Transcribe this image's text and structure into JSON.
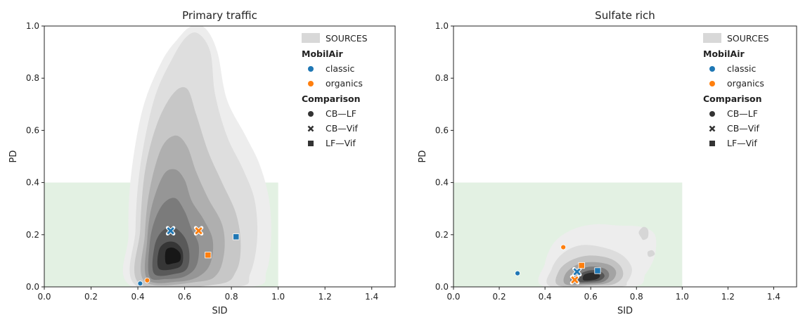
{
  "chart_data": [
    {
      "type": "scatter",
      "title": "Primary traffic",
      "xlabel": "SID",
      "ylabel": "PD",
      "xlim": [
        0.0,
        1.5
      ],
      "ylim": [
        0.0,
        1.0
      ],
      "xticks": [
        "0.0",
        "0.2",
        "0.4",
        "0.6",
        "0.8",
        "1.0",
        "1.2",
        "1.4"
      ],
      "yticks": [
        "0.0",
        "0.2",
        "0.4",
        "0.6",
        "0.8",
        "1.0"
      ],
      "grid": false,
      "legend_position": "top-right",
      "region": {
        "x": [
          0.0,
          1.0
        ],
        "y": [
          0.0,
          0.4
        ],
        "color": "#e3f1e3"
      },
      "density": {
        "label": "SOURCES",
        "levels": [
          {
            "fill": "#ededed",
            "pts": [
              [
                0.38,
                0.0
              ],
              [
                0.36,
                0.2
              ],
              [
                0.37,
                0.42
              ],
              [
                0.42,
                0.68
              ],
              [
                0.5,
                0.86
              ],
              [
                0.57,
                0.95
              ],
              [
                0.63,
                1.0
              ],
              [
                0.69,
                0.99
              ],
              [
                0.74,
                0.9
              ],
              [
                0.78,
                0.72
              ],
              [
                0.86,
                0.58
              ],
              [
                0.92,
                0.47
              ],
              [
                0.96,
                0.34
              ],
              [
                0.97,
                0.2
              ],
              [
                0.95,
                0.06
              ],
              [
                0.88,
                0.0
              ]
            ]
          },
          {
            "fill": "#dedede",
            "pts": [
              [
                0.4,
                0.0
              ],
              [
                0.39,
                0.22
              ],
              [
                0.41,
                0.46
              ],
              [
                0.47,
                0.72
              ],
              [
                0.55,
                0.88
              ],
              [
                0.61,
                0.96
              ],
              [
                0.66,
                0.97
              ],
              [
                0.71,
                0.9
              ],
              [
                0.73,
                0.74
              ],
              [
                0.78,
                0.58
              ],
              [
                0.85,
                0.45
              ],
              [
                0.9,
                0.33
              ],
              [
                0.91,
                0.18
              ],
              [
                0.88,
                0.05
              ],
              [
                0.82,
                0.0
              ]
            ]
          },
          {
            "fill": "#c7c7c7",
            "pts": [
              [
                0.41,
                0.01
              ],
              [
                0.41,
                0.22
              ],
              [
                0.43,
                0.44
              ],
              [
                0.48,
                0.62
              ],
              [
                0.55,
                0.74
              ],
              [
                0.61,
                0.76
              ],
              [
                0.65,
                0.66
              ],
              [
                0.7,
                0.52
              ],
              [
                0.76,
                0.4
              ],
              [
                0.82,
                0.28
              ],
              [
                0.84,
                0.16
              ],
              [
                0.82,
                0.06
              ],
              [
                0.74,
                0.01
              ]
            ]
          },
          {
            "fill": "#afafaf",
            "pts": [
              [
                0.43,
                0.02
              ],
              [
                0.43,
                0.2
              ],
              [
                0.45,
                0.37
              ],
              [
                0.5,
                0.53
              ],
              [
                0.56,
                0.58
              ],
              [
                0.61,
                0.54
              ],
              [
                0.65,
                0.44
              ],
              [
                0.7,
                0.34
              ],
              [
                0.76,
                0.24
              ],
              [
                0.77,
                0.14
              ],
              [
                0.74,
                0.05
              ],
              [
                0.66,
                0.02
              ]
            ]
          },
          {
            "fill": "#969696",
            "pts": [
              [
                0.44,
                0.03
              ],
              [
                0.44,
                0.18
              ],
              [
                0.46,
                0.31
              ],
              [
                0.51,
                0.43
              ],
              [
                0.56,
                0.45
              ],
              [
                0.6,
                0.41
              ],
              [
                0.63,
                0.33
              ],
              [
                0.68,
                0.26
              ],
              [
                0.72,
                0.18
              ],
              [
                0.71,
                0.09
              ],
              [
                0.66,
                0.04
              ],
              [
                0.57,
                0.02
              ]
            ]
          },
          {
            "fill": "#7b7b7b",
            "pts": [
              [
                0.45,
                0.04
              ],
              [
                0.45,
                0.16
              ],
              [
                0.47,
                0.25
              ],
              [
                0.51,
                0.32
              ],
              [
                0.56,
                0.34
              ],
              [
                0.6,
                0.29
              ],
              [
                0.63,
                0.22
              ],
              [
                0.66,
                0.16
              ],
              [
                0.65,
                0.08
              ],
              [
                0.6,
                0.04
              ],
              [
                0.52,
                0.03
              ]
            ]
          },
          {
            "fill": "#595959",
            "pts": [
              [
                0.47,
                0.05
              ],
              [
                0.47,
                0.15
              ],
              [
                0.5,
                0.21
              ],
              [
                0.55,
                0.23
              ],
              [
                0.6,
                0.19
              ],
              [
                0.62,
                0.13
              ],
              [
                0.61,
                0.07
              ],
              [
                0.56,
                0.05
              ]
            ]
          },
          {
            "fill": "#363636",
            "pts": [
              [
                0.49,
                0.07
              ],
              [
                0.49,
                0.14
              ],
              [
                0.52,
                0.17
              ],
              [
                0.56,
                0.17
              ],
              [
                0.59,
                0.14
              ],
              [
                0.59,
                0.09
              ],
              [
                0.56,
                0.07
              ]
            ]
          },
          {
            "fill": "#171717",
            "pts": [
              [
                0.52,
                0.09
              ],
              [
                0.52,
                0.14
              ],
              [
                0.55,
                0.15
              ],
              [
                0.58,
                0.13
              ],
              [
                0.58,
                0.1
              ],
              [
                0.55,
                0.09
              ]
            ]
          }
        ]
      },
      "legend": {
        "density_label": "SOURCES",
        "mobilair_title": "MobilAir",
        "mobilair_items": [
          {
            "label": "classic",
            "color": "#1f77b4"
          },
          {
            "label": "organics",
            "color": "#ff7f0e"
          }
        ],
        "comparison_title": "Comparison",
        "comparison_items": [
          {
            "label": "CB—LF",
            "marker": "circle"
          },
          {
            "label": "CB—Vif",
            "marker": "x"
          },
          {
            "label": "LF—Vif",
            "marker": "square"
          }
        ]
      },
      "points": [
        {
          "x": 0.41,
          "y": 0.013,
          "series": "classic",
          "marker": "circle"
        },
        {
          "x": 0.44,
          "y": 0.025,
          "series": "organics",
          "marker": "circle"
        },
        {
          "x": 0.54,
          "y": 0.215,
          "series": "classic",
          "marker": "x"
        },
        {
          "x": 0.66,
          "y": 0.215,
          "series": "organics",
          "marker": "x"
        },
        {
          "x": 0.7,
          "y": 0.122,
          "series": "organics",
          "marker": "square"
        },
        {
          "x": 0.82,
          "y": 0.192,
          "series": "classic",
          "marker": "square"
        }
      ]
    },
    {
      "type": "scatter",
      "title": "Sulfate rich",
      "xlabel": "SID",
      "ylabel": "PD",
      "xlim": [
        0.0,
        1.5
      ],
      "ylim": [
        0.0,
        1.0
      ],
      "xticks": [
        "0.0",
        "0.2",
        "0.4",
        "0.6",
        "0.8",
        "1.0",
        "1.2",
        "1.4"
      ],
      "yticks": [
        "0.0",
        "0.2",
        "0.4",
        "0.6",
        "0.8",
        "1.0"
      ],
      "grid": false,
      "legend_position": "top-right",
      "region": {
        "x": [
          0.0,
          1.0
        ],
        "y": [
          0.0,
          0.4
        ],
        "color": "#e3f1e3"
      },
      "density": {
        "label": "SOURCES",
        "levels": [
          {
            "fill": "#ededed",
            "pts": [
              [
                0.4,
                0.0
              ],
              [
                0.4,
                0.09
              ],
              [
                0.44,
                0.17
              ],
              [
                0.52,
                0.22
              ],
              [
                0.62,
                0.24
              ],
              [
                0.72,
                0.235
              ],
              [
                0.82,
                0.23
              ],
              [
                0.88,
                0.2
              ],
              [
                0.88,
                0.12
              ],
              [
                0.84,
                0.05
              ],
              [
                0.78,
                0.0
              ]
            ]
          },
          {
            "fill": "#dddddd",
            "pts": [
              [
                0.43,
                0.0
              ],
              [
                0.43,
                0.07
              ],
              [
                0.48,
                0.13
              ],
              [
                0.56,
                0.16
              ],
              [
                0.66,
                0.15
              ],
              [
                0.74,
                0.12
              ],
              [
                0.78,
                0.07
              ],
              [
                0.76,
                0.02
              ],
              [
                0.72,
                0.0
              ]
            ]
          },
          {
            "fill": "#c2c2c2",
            "pts": [
              [
                0.46,
                0.005
              ],
              [
                0.46,
                0.06
              ],
              [
                0.51,
                0.1
              ],
              [
                0.59,
                0.12
              ],
              [
                0.68,
                0.11
              ],
              [
                0.73,
                0.08
              ],
              [
                0.74,
                0.04
              ],
              [
                0.7,
                0.01
              ],
              [
                0.62,
                0.005
              ]
            ]
          },
          {
            "fill": "#a3a3a3",
            "pts": [
              [
                0.49,
                0.01
              ],
              [
                0.49,
                0.05
              ],
              [
                0.54,
                0.085
              ],
              [
                0.61,
                0.095
              ],
              [
                0.68,
                0.085
              ],
              [
                0.71,
                0.06
              ],
              [
                0.7,
                0.03
              ],
              [
                0.66,
                0.012
              ],
              [
                0.58,
                0.008
              ]
            ]
          },
          {
            "fill": "#7e7e7e",
            "pts": [
              [
                0.52,
                0.015
              ],
              [
                0.52,
                0.045
              ],
              [
                0.56,
                0.07
              ],
              [
                0.61,
                0.078
              ],
              [
                0.66,
                0.07
              ],
              [
                0.68,
                0.05
              ],
              [
                0.67,
                0.028
              ],
              [
                0.63,
                0.015
              ]
            ]
          },
          {
            "fill": "#555555",
            "pts": [
              [
                0.55,
                0.02
              ],
              [
                0.55,
                0.045
              ],
              [
                0.58,
                0.06
              ],
              [
                0.62,
                0.064
              ],
              [
                0.65,
                0.055
              ],
              [
                0.66,
                0.04
              ],
              [
                0.64,
                0.025
              ],
              [
                0.6,
                0.02
              ]
            ]
          },
          {
            "fill": "#2b2b2b",
            "pts": [
              [
                0.57,
                0.025
              ],
              [
                0.57,
                0.045
              ],
              [
                0.6,
                0.054
              ],
              [
                0.63,
                0.052
              ],
              [
                0.64,
                0.04
              ],
              [
                0.62,
                0.028
              ]
            ]
          },
          {
            "fill": "#d6d6d6",
            "pts": [
              [
                0.82,
                0.19
              ],
              [
                0.81,
                0.21
              ],
              [
                0.83,
                0.23
              ],
              [
                0.85,
                0.22
              ],
              [
                0.85,
                0.19
              ],
              [
                0.83,
                0.18
              ]
            ]
          },
          {
            "fill": "#d6d6d6",
            "pts": [
              [
                0.85,
                0.12
              ],
              [
                0.85,
                0.135
              ],
              [
                0.87,
                0.14
              ],
              [
                0.88,
                0.125
              ],
              [
                0.86,
                0.115
              ]
            ]
          }
        ]
      },
      "legend": {
        "density_label": "SOURCES",
        "mobilair_title": "MobilAir",
        "mobilair_items": [
          {
            "label": "classic",
            "color": "#1f77b4"
          },
          {
            "label": "organics",
            "color": "#ff7f0e"
          }
        ],
        "comparison_title": "Comparison",
        "comparison_items": [
          {
            "label": "CB—LF",
            "marker": "circle"
          },
          {
            "label": "CB—Vif",
            "marker": "x"
          },
          {
            "label": "LF—Vif",
            "marker": "square"
          }
        ]
      },
      "points": [
        {
          "x": 0.28,
          "y": 0.052,
          "series": "classic",
          "marker": "circle"
        },
        {
          "x": 0.48,
          "y": 0.152,
          "series": "organics",
          "marker": "circle"
        },
        {
          "x": 0.54,
          "y": 0.058,
          "series": "classic",
          "marker": "x"
        },
        {
          "x": 0.53,
          "y": 0.027,
          "series": "organics",
          "marker": "x"
        },
        {
          "x": 0.56,
          "y": 0.082,
          "series": "organics",
          "marker": "square"
        },
        {
          "x": 0.63,
          "y": 0.062,
          "series": "classic",
          "marker": "square"
        }
      ]
    }
  ]
}
